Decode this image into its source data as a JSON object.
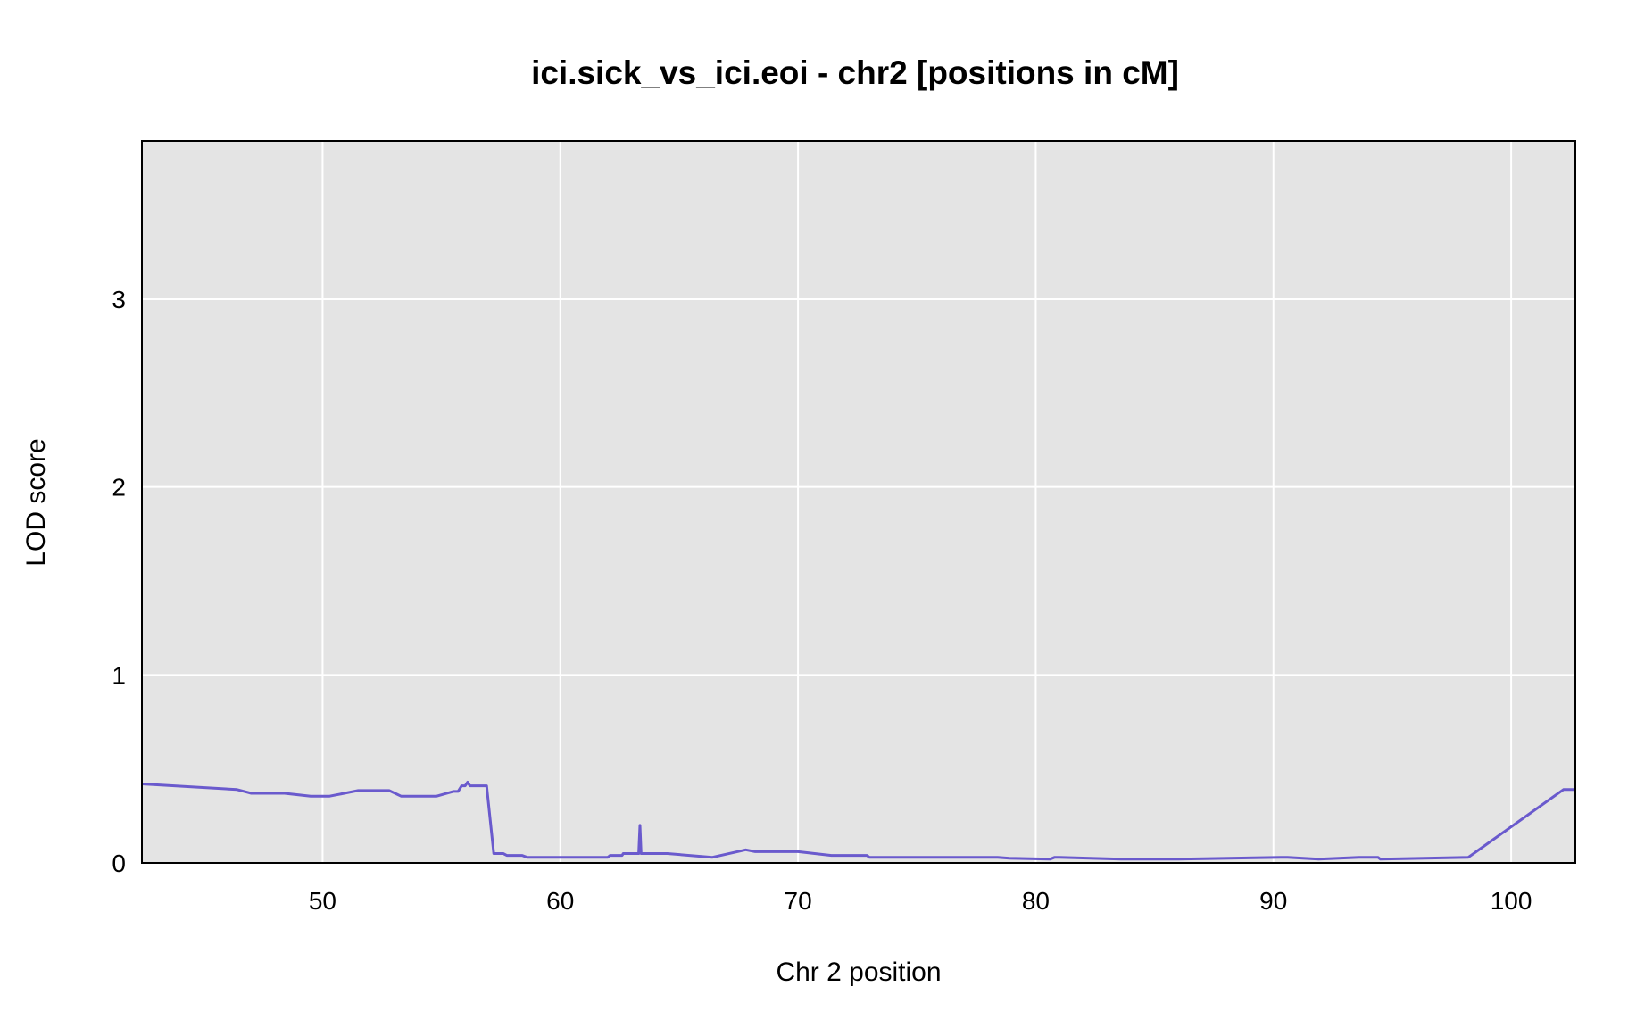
{
  "chart_data": {
    "type": "line",
    "title": "ici.sick_vs_ici.eoi - chr2 [positions in cM]",
    "xlabel": "Chr 2 position",
    "ylabel": "LOD score",
    "xlim": [
      42.4,
      102.7
    ],
    "ylim": [
      0,
      3.84
    ],
    "xticks": [
      50,
      60,
      70,
      80,
      90,
      100
    ],
    "yticks": [
      0,
      1,
      2,
      3
    ],
    "grid": true,
    "legend": "none",
    "colors": {
      "line": "#6a5acd",
      "panel": "#e4e4e4",
      "grid": "#ffffff",
      "baseline": "#00008b"
    },
    "series": [
      {
        "x": [
          42.4,
          46.4,
          47.0,
          48.4,
          49.5,
          50.0,
          50.3,
          51.5,
          52.8,
          53.3,
          54.8,
          55.5,
          55.7,
          55.85,
          56.0,
          56.1,
          56.2,
          56.3,
          56.4,
          56.5,
          56.6,
          56.9,
          57.2,
          57.6,
          57.75,
          58.4,
          58.6,
          62.0,
          62.1,
          62.6,
          62.65,
          63.3,
          63.35,
          63.4,
          64.5,
          66.4,
          67.8,
          68.2,
          70.0,
          71.4,
          72.9,
          73.0,
          78.4,
          78.9,
          80.6,
          80.8,
          81.0,
          83.6,
          86.0,
          90.3,
          90.6,
          91.9,
          93.6,
          94.4,
          94.5,
          98.2,
          102.2,
          102.7
        ],
        "y": [
          0.42,
          0.39,
          0.37,
          0.37,
          0.355,
          0.355,
          0.355,
          0.385,
          0.385,
          0.355,
          0.355,
          0.38,
          0.38,
          0.41,
          0.41,
          0.43,
          0.41,
          0.41,
          0.41,
          0.41,
          0.41,
          0.41,
          0.05,
          0.05,
          0.04,
          0.04,
          0.03,
          0.03,
          0.04,
          0.04,
          0.05,
          0.05,
          0.2,
          0.05,
          0.05,
          0.03,
          0.07,
          0.06,
          0.06,
          0.04,
          0.04,
          0.03,
          0.03,
          0.025,
          0.02,
          0.03,
          0.03,
          0.02,
          0.02,
          0.03,
          0.03,
          0.02,
          0.03,
          0.03,
          0.02,
          0.03,
          0.39,
          0.39
        ]
      }
    ]
  }
}
